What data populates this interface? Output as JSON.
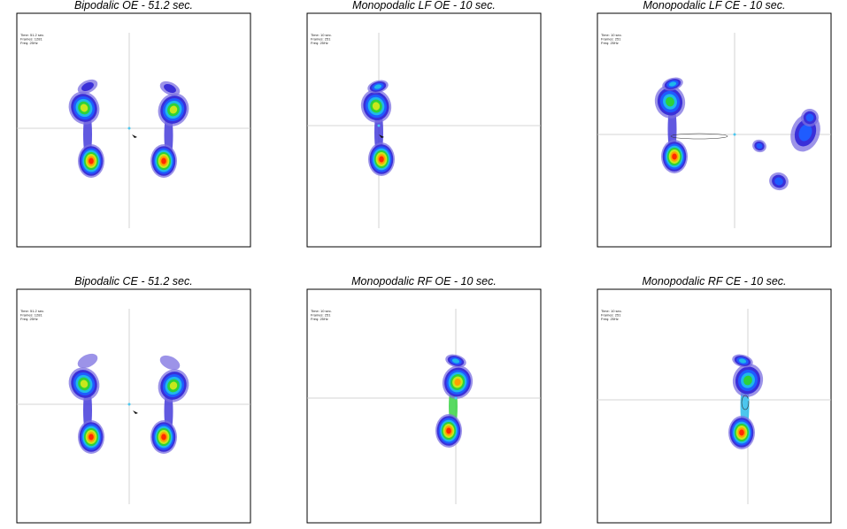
{
  "panels": [
    {
      "title": "Bipodalic OE - 51.2 sec.",
      "info": [
        "Time: 51.2 sec.",
        "Frames: 1281",
        "Freq: 25Hz"
      ]
    },
    {
      "title": "Monopodalic LF OE - 10 sec.",
      "info": [
        "Time: 10 sec.",
        "Frames: 251",
        "Freq: 25Hz"
      ]
    },
    {
      "title": "Monopodalic LF CE - 10 sec.",
      "info": [
        "Time: 10 sec.",
        "Frames: 251",
        "Freq: 25Hz"
      ]
    },
    {
      "title": "Bipodalic CE - 51.2 sec.",
      "info": [
        "Time: 51.2 sec.",
        "Frames: 1281",
        "Freq: 25Hz"
      ]
    },
    {
      "title": "Monopodalic RF OE - 10 sec.",
      "info": [
        "Time: 10 sec.",
        "Frames: 251",
        "Freq: 25Hz"
      ]
    },
    {
      "title": "Monopodalic RF CE - 10 sec.",
      "info": [
        "Time: 10 sec.",
        "Frames: 251",
        "Freq: 25Hz"
      ]
    }
  ]
}
